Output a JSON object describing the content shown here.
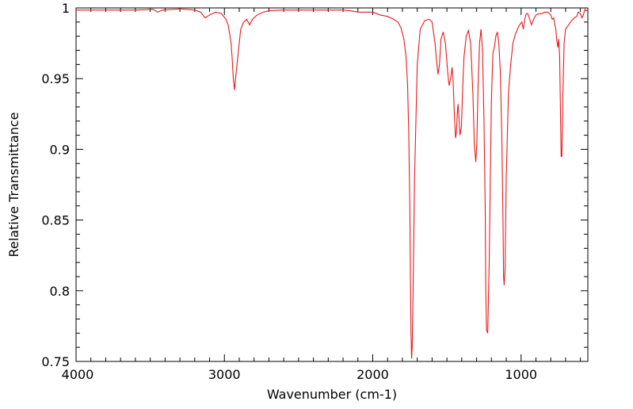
{
  "chart_data": {
    "type": "line",
    "title": "",
    "xlabel": "Wavenumber (cm-1)",
    "ylabel": "Relative Transmittance",
    "xlim": [
      4000,
      550
    ],
    "ylim": [
      0.75,
      1.0
    ],
    "x_reversed": true,
    "grid": false,
    "legend": "none",
    "line_color": "#e8191c",
    "x_ticks": [
      {
        "value": 4000,
        "label": "4000"
      },
      {
        "value": 3000,
        "label": "3000"
      },
      {
        "value": 2000,
        "label": "2000"
      },
      {
        "value": 1000,
        "label": "1000"
      }
    ],
    "y_ticks": [
      {
        "value": 1.0,
        "label": "1"
      },
      {
        "value": 0.95,
        "label": "0.95"
      },
      {
        "value": 0.9,
        "label": "0.9"
      },
      {
        "value": 0.85,
        "label": "0.85"
      },
      {
        "value": 0.8,
        "label": "0.8"
      },
      {
        "value": 0.75,
        "label": "0.75"
      }
    ],
    "series": [
      {
        "x": [
          4000,
          3800,
          3600,
          3480,
          3450,
          3420,
          3300,
          3200,
          3160,
          3130,
          3100,
          3060,
          3020,
          2990,
          2975,
          2965,
          2955,
          2948,
          2940,
          2932,
          2920,
          2905,
          2890,
          2870,
          2850,
          2830,
          2810,
          2780,
          2740,
          2700,
          2600,
          2400,
          2200,
          2150,
          2100,
          2050,
          2000,
          1950,
          1900,
          1860,
          1830,
          1810,
          1790,
          1775,
          1765,
          1757,
          1750,
          1746,
          1742,
          1738,
          1734,
          1728,
          1718,
          1700,
          1680,
          1650,
          1620,
          1600,
          1580,
          1570,
          1560,
          1550,
          1540,
          1525,
          1510,
          1495,
          1485,
          1475,
          1465,
          1458,
          1450,
          1442,
          1436,
          1430,
          1425,
          1420,
          1412,
          1402,
          1395,
          1385,
          1370,
          1355,
          1340,
          1325,
          1315,
          1305,
          1298,
          1290,
          1280,
          1270,
          1260,
          1250,
          1242,
          1238,
          1233,
          1225,
          1215,
          1200,
          1190,
          1180,
          1170,
          1160,
          1150,
          1140,
          1130,
          1122,
          1118,
          1114,
          1108,
          1100,
          1085,
          1070,
          1055,
          1040,
          1025,
          1010,
          995,
          985,
          975,
          965,
          955,
          945,
          930,
          915,
          900,
          880,
          860,
          840,
          820,
          800,
          790,
          780,
          772,
          766,
          760,
          752,
          746,
          740,
          735,
          730,
          725,
          718,
          710,
          700,
          680,
          660,
          640,
          625,
          615,
          600,
          590,
          580,
          570,
          560,
          550
        ],
        "y": [
          0.9985,
          0.9985,
          0.9985,
          0.999,
          0.997,
          0.9985,
          0.9993,
          0.9985,
          0.997,
          0.993,
          0.995,
          0.997,
          0.996,
          0.992,
          0.988,
          0.982,
          0.975,
          0.965,
          0.95,
          0.942,
          0.955,
          0.97,
          0.985,
          0.99,
          0.992,
          0.988,
          0.992,
          0.995,
          0.997,
          0.998,
          0.9985,
          0.9985,
          0.9985,
          0.998,
          0.997,
          0.997,
          0.997,
          0.995,
          0.994,
          0.992,
          0.99,
          0.986,
          0.978,
          0.965,
          0.945,
          0.91,
          0.86,
          0.81,
          0.77,
          0.752,
          0.76,
          0.8,
          0.88,
          0.96,
          0.985,
          0.991,
          0.992,
          0.99,
          0.975,
          0.963,
          0.953,
          0.96,
          0.978,
          0.983,
          0.975,
          0.955,
          0.945,
          0.95,
          0.958,
          0.948,
          0.925,
          0.908,
          0.912,
          0.925,
          0.932,
          0.925,
          0.91,
          0.916,
          0.94,
          0.965,
          0.98,
          0.984,
          0.975,
          0.94,
          0.903,
          0.891,
          0.905,
          0.945,
          0.975,
          0.985,
          0.97,
          0.92,
          0.86,
          0.8,
          0.772,
          0.77,
          0.82,
          0.935,
          0.968,
          0.972,
          0.98,
          0.983,
          0.975,
          0.955,
          0.91,
          0.85,
          0.81,
          0.804,
          0.815,
          0.88,
          0.94,
          0.96,
          0.975,
          0.981,
          0.985,
          0.988,
          0.99,
          0.985,
          0.992,
          0.996,
          0.996,
          0.993,
          0.988,
          0.992,
          0.995,
          0.996,
          0.996,
          0.997,
          0.997,
          0.995,
          0.992,
          0.993,
          0.988,
          0.985,
          0.978,
          0.972,
          0.978,
          0.965,
          0.93,
          0.895,
          0.895,
          0.94,
          0.975,
          0.985,
          0.988,
          0.991,
          0.993,
          0.994,
          0.997,
          0.996,
          0.993,
          0.995,
          0.999,
          0.998,
          0.9985
        ]
      }
    ]
  }
}
